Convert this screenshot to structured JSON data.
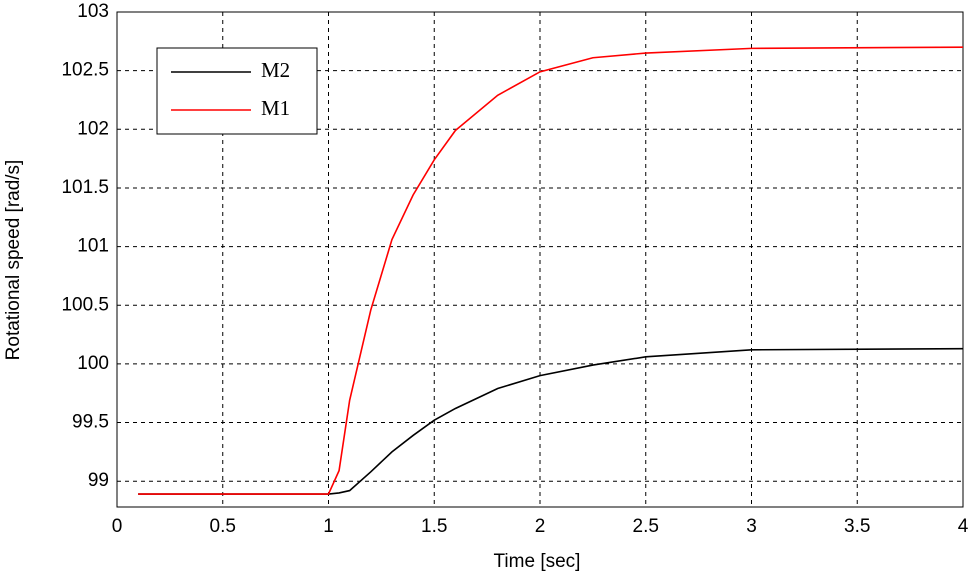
{
  "chart_data": {
    "type": "line",
    "x_label": "Time [sec]",
    "y_label": "Rotational speed [rad/s]",
    "x": [
      0.1,
      1.0,
      1.05,
      1.1,
      1.2,
      1.3,
      1.4,
      1.5,
      1.6,
      1.8,
      2.0,
      2.25,
      2.5,
      3.0,
      4.0
    ],
    "series": [
      {
        "name": "M2",
        "color": "#000000",
        "values": [
          98.89,
          98.89,
          98.9,
          98.92,
          99.08,
          99.25,
          99.39,
          99.52,
          99.62,
          99.79,
          99.9,
          99.99,
          100.06,
          100.12,
          100.13
        ]
      },
      {
        "name": "M1",
        "color": "#ff0000",
        "values": [
          98.89,
          98.89,
          99.09,
          99.69,
          100.46,
          101.06,
          101.44,
          101.74,
          101.99,
          102.29,
          102.49,
          102.61,
          102.65,
          102.69,
          102.7
        ]
      }
    ],
    "xlim": [
      0,
      4
    ],
    "xticks": [
      0,
      0.5,
      1,
      1.5,
      2,
      2.5,
      3,
      3.5,
      4
    ],
    "ylim": [
      98.78,
      103
    ],
    "yticks": [
      99,
      99.5,
      100,
      100.5,
      101,
      101.5,
      102,
      102.5,
      103
    ],
    "grid": true,
    "legend": "upper-left"
  }
}
